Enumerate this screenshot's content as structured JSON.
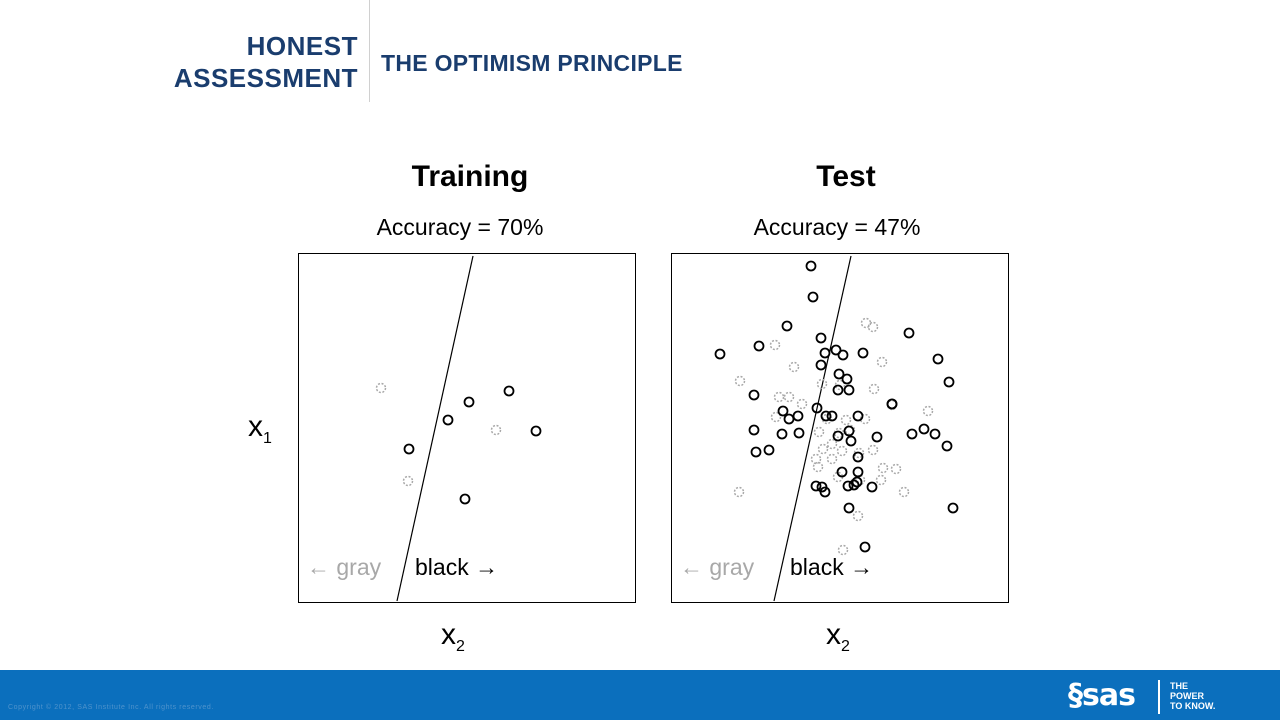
{
  "header": {
    "section_line1": "HONEST",
    "section_line2": "ASSESSMENT",
    "title": "THE OPTIMISM PRINCIPLE"
  },
  "panels": [
    {
      "title": "Training",
      "accuracy": "Accuracy = 70%",
      "gray_label": "← gray",
      "black_label": "black →",
      "x_label": "x",
      "x_sub": "2"
    },
    {
      "title": "Test",
      "accuracy": "Accuracy = 47%",
      "gray_label": "← gray",
      "black_label": "black →",
      "x_label": "x",
      "x_sub": "2"
    }
  ],
  "y_axis": {
    "label": "x",
    "sub": "1"
  },
  "footer": {
    "copyright": "Copyright © 2012, SAS Institute Inc. All rights reserved.",
    "logo_text": "§sas",
    "tagline_1": "THE",
    "tagline_2": "POWER",
    "tagline_3": "TO KNOW."
  },
  "colors": {
    "header_navy": "#1a3d6e",
    "footer_blue": "#0b6fbd",
    "gray_marker": "#a8a8a8"
  }
}
